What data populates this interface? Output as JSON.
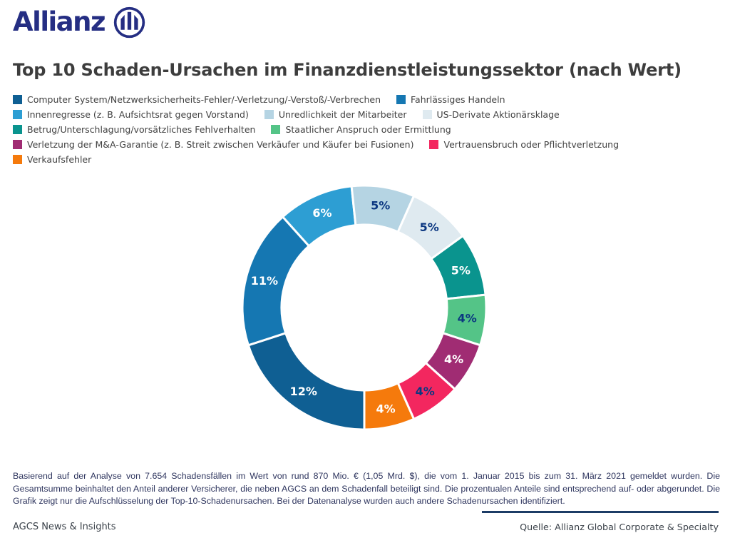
{
  "brand": {
    "wordmark": "Allianz",
    "logo_color": "#252e83"
  },
  "title": "Top 10 Schaden-Ursachen im Finanzdienstleistungssektor (nach Wert)",
  "chart_data": {
    "type": "donut",
    "title": "Top 10 Schaden-Ursachen im Finanzdienstleistungssektor (nach Wert)",
    "unit": "%",
    "start_angle_deg": 180,
    "direction": "clockwise",
    "note": "Segment angles are scaled so the ten shown percentages fill the full ring",
    "segments": [
      {
        "label": "Computer System/Netzwerksicherheits-Fehler/-Verletzung/-Verstoß/-Verbrechen",
        "value": 12,
        "display": "12%",
        "color": "#0f5f93",
        "label_color": "#ffffff"
      },
      {
        "label": "Fahrlässiges Handeln",
        "value": 11,
        "display": "11%",
        "color": "#1577b2",
        "label_color": "#ffffff"
      },
      {
        "label": "Innenregresse (z. B. Aufsichtsrat gegen Vorstand)",
        "value": 6,
        "display": "6%",
        "color": "#2d9ed3",
        "label_color": "#ffffff"
      },
      {
        "label": "Unredlichkeit der Mitarbeiter",
        "value": 5,
        "display": "5%",
        "color": "#b5d4e3",
        "label_color": "#0b3781"
      },
      {
        "label": "US-Derivate Aktionärsklage",
        "value": 5,
        "display": "5%",
        "color": "#dfeaf0",
        "label_color": "#0b3781"
      },
      {
        "label": "Betrug/Unterschlagung/vorsätzliches Fehlverhalten",
        "value": 5,
        "display": "5%",
        "color": "#0a948e",
        "label_color": "#ffffff"
      },
      {
        "label": "Staatlicher Anspruch oder Ermittlung",
        "value": 4,
        "display": "4%",
        "color": "#54c487",
        "label_color": "#0b3781"
      },
      {
        "label": "Verletzung der M&A-Garantie (z. B. Streit zwischen Verkäufer und Käufer bei Fusionen)",
        "value": 4,
        "display": "4%",
        "color": "#a02c73",
        "label_color": "#ffffff"
      },
      {
        "label": "Vertrauensbruch oder Pflichtverletzung",
        "value": 4,
        "display": "4%",
        "color": "#f3275f",
        "label_color": "#0b3781"
      },
      {
        "label": "Verkaufsfehler",
        "value": 4,
        "display": "4%",
        "color": "#f57a0c",
        "label_color": "#ffffff"
      }
    ],
    "legend_rows": [
      [
        0,
        1
      ],
      [
        2,
        3,
        4
      ],
      [
        5,
        6
      ],
      [
        7,
        8
      ],
      [
        9
      ]
    ],
    "legend_position": "top-left"
  },
  "footnote": {
    "text": "Basierend auf der Analyse von 7.654 Schadensfällen im Wert von rund 870 Mio. € (1,05 Mrd. $), die vom 1. Januar 2015 bis zum 31. März 2021 gemeldet wurden. Die Gesamtsumme beinhaltet den Anteil anderer Versicherer, die neben AGCS an dem Schadenfall beteiligt sind. Die prozentualen Anteile sind entsprechend auf- oder abgerundet. Die Grafik zeigt nur die Aufschlüsselung der Top-10-Schadenursachen. Bei der Datenanalyse wurden auch andere Schadenursachen identifiziert."
  },
  "footer": {
    "left": "AGCS News & Insights",
    "right": "Quelle: Allianz Global Corporate & Specialty"
  }
}
